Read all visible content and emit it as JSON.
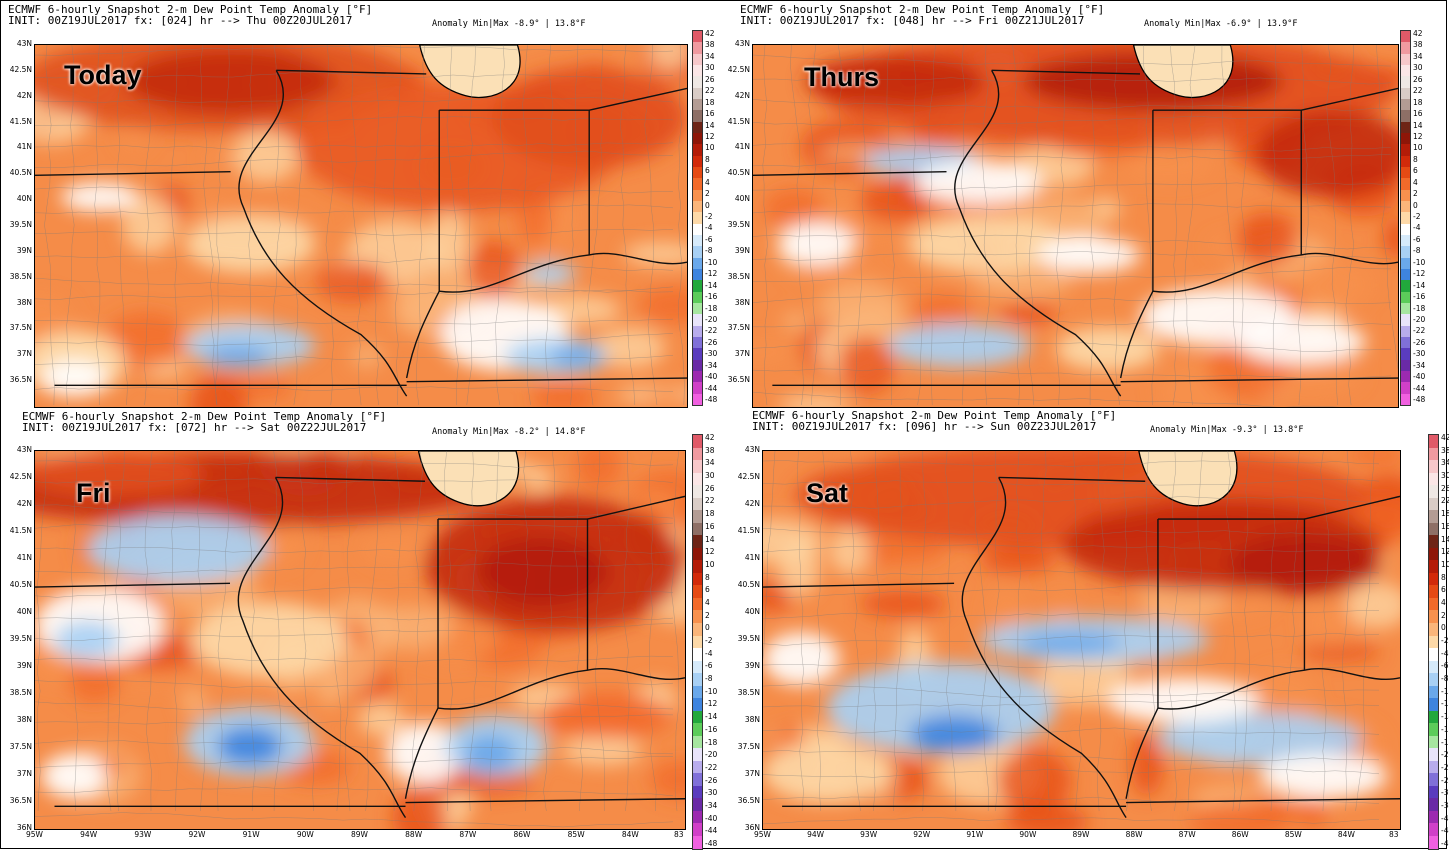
{
  "colorbar": {
    "ticks": [
      "42",
      "38",
      "34",
      "30",
      "26",
      "22",
      "18",
      "16",
      "14",
      "12",
      "10",
      "8",
      "6",
      "4",
      "2",
      "0",
      "-2",
      "-4",
      "-6",
      "-8",
      "-10",
      "-12",
      "-14",
      "-16",
      "-18",
      "-20",
      "-22",
      "-26",
      "-30",
      "-34",
      "-40",
      "-44",
      "-48"
    ],
    "colors": [
      "#e05a68",
      "#f09aa0",
      "#f7c8ca",
      "#fbe6e6",
      "#efe8e4",
      "#d9ccc6",
      "#b39c94",
      "#8e6f66",
      "#6e2416",
      "#8e1608",
      "#b41c08",
      "#d22a0a",
      "#e64a14",
      "#f26a2a",
      "#f7914e",
      "#fab57a",
      "#fdd9a8",
      "#ffffff",
      "#d6eafa",
      "#a8d0f4",
      "#6aa8ea",
      "#3e84de",
      "#22a83c",
      "#5ccc5a",
      "#a6e6a0",
      "#e8e4fa",
      "#b8acec",
      "#8070d8",
      "#5a3cbe",
      "#6a2aa6",
      "#9c2ab0",
      "#d040c8",
      "#f060e0"
    ]
  },
  "lon_labels": [
    "95W",
    "94W",
    "93W",
    "92W",
    "91W",
    "90W",
    "89W",
    "88W",
    "87W",
    "86W",
    "85W",
    "84W",
    "83"
  ],
  "lat_labels": [
    "43N",
    "42.5N",
    "42N",
    "41.5N",
    "41N",
    "40.5N",
    "40N",
    "39.5N",
    "39N",
    "38.5N",
    "38N",
    "37.5N",
    "37N",
    "36.5N",
    "36N"
  ],
  "panels": [
    {
      "line1": "ECMWF 6-hourly Snapshot 2-m Dew Point Temp Anomaly [°F]",
      "line2": "INIT: 00Z19JUL2017 fx: [024] hr --> Thu 00Z20JUL2017",
      "minmax": "Anomaly Min|Max -8.9° | 13.8°F",
      "day": "Today"
    },
    {
      "line1": "ECMWF 6-hourly Snapshot 2-m Dew Point Temp Anomaly [°F]",
      "line2": "INIT: 00Z19JUL2017 fx: [048] hr --> Fri 00Z21JUL2017",
      "minmax": "Anomaly Min|Max -6.9° | 13.9°F",
      "day": "Thurs"
    },
    {
      "line1": "ECMWF 6-hourly Snapshot 2-m Dew Point Temp Anomaly [°F]",
      "line2": "INIT: 00Z19JUL2017 fx: [072] hr --> Sat 00Z22JUL2017",
      "minmax": "Anomaly Min|Max -8.2° | 14.8°F",
      "day": "Fri"
    },
    {
      "line1": "ECMWF 6-hourly Snapshot 2-m Dew Point Temp Anomaly [°F]",
      "line2": "INIT: 00Z19JUL2017 fx: [096] hr --> Sun 00Z23JUL2017",
      "minmax": "Anomaly Min|Max -9.3° | 13.8°F",
      "day": "Sat"
    }
  ]
}
